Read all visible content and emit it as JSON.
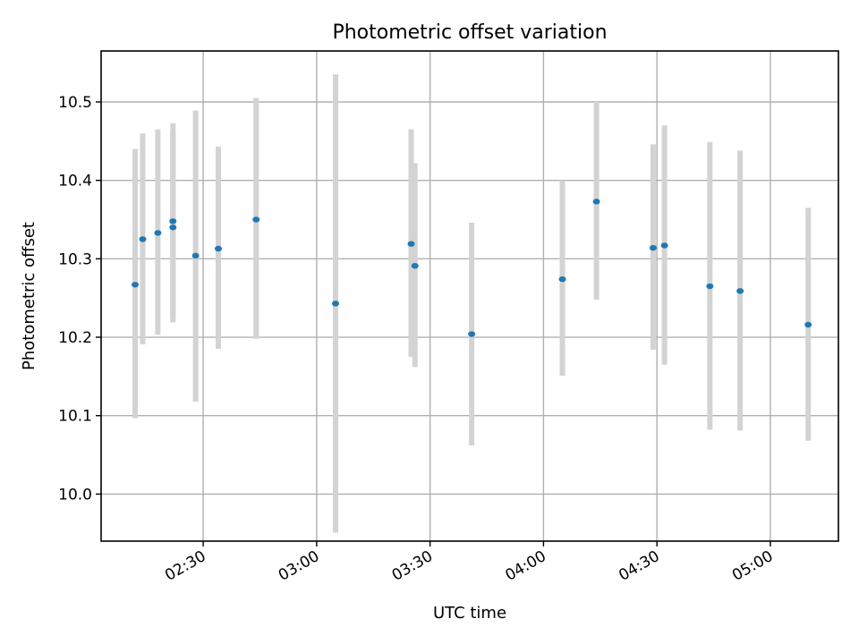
{
  "chart_data": {
    "type": "scatter",
    "title": "Photometric offset variation",
    "xlabel": "UTC time",
    "ylabel": "Photometric offset",
    "x_unit": "time (HH:MM UTC)",
    "xlim": [
      "02:03",
      "05:18"
    ],
    "ylim": [
      9.94,
      10.565
    ],
    "x_ticks": [
      "02:30",
      "03:00",
      "03:30",
      "04:00",
      "04:30",
      "05:00"
    ],
    "y_ticks": [
      10.0,
      10.1,
      10.2,
      10.3,
      10.4,
      10.5
    ],
    "grid": true,
    "legend": "none",
    "colors": {
      "point": "#1f77b4",
      "errorbar": "#d3d3d3"
    },
    "points": [
      {
        "x": "02:12",
        "y": 10.267,
        "low": 10.097,
        "high": 10.44
      },
      {
        "x": "02:14",
        "y": 10.325,
        "low": 10.191,
        "high": 10.46
      },
      {
        "x": "02:18",
        "y": 10.333,
        "low": 10.203,
        "high": 10.465
      },
      {
        "x": "02:22",
        "y": 10.34,
        "low": 10.219,
        "high": 10.46
      },
      {
        "x": "02:22",
        "y": 10.348,
        "low": 10.225,
        "high": 10.473
      },
      {
        "x": "02:28",
        "y": 10.304,
        "low": 10.118,
        "high": 10.489
      },
      {
        "x": "02:34",
        "y": 10.313,
        "low": 10.185,
        "high": 10.443
      },
      {
        "x": "02:44",
        "y": 10.35,
        "low": 10.198,
        "high": 10.505
      },
      {
        "x": "03:05",
        "y": 10.243,
        "low": 9.951,
        "high": 10.535
      },
      {
        "x": "03:25",
        "y": 10.319,
        "low": 10.175,
        "high": 10.465
      },
      {
        "x": "03:26",
        "y": 10.291,
        "low": 10.162,
        "high": 10.422
      },
      {
        "x": "03:41",
        "y": 10.204,
        "low": 10.062,
        "high": 10.346
      },
      {
        "x": "04:05",
        "y": 10.274,
        "low": 10.151,
        "high": 10.4
      },
      {
        "x": "04:14",
        "y": 10.373,
        "low": 10.248,
        "high": 10.5
      },
      {
        "x": "04:29",
        "y": 10.314,
        "low": 10.184,
        "high": 10.446
      },
      {
        "x": "04:32",
        "y": 10.317,
        "low": 10.165,
        "high": 10.47
      },
      {
        "x": "04:44",
        "y": 10.265,
        "low": 10.082,
        "high": 10.449
      },
      {
        "x": "04:52",
        "y": 10.259,
        "low": 10.081,
        "high": 10.438
      },
      {
        "x": "05:10",
        "y": 10.216,
        "low": 10.068,
        "high": 10.365
      }
    ]
  }
}
